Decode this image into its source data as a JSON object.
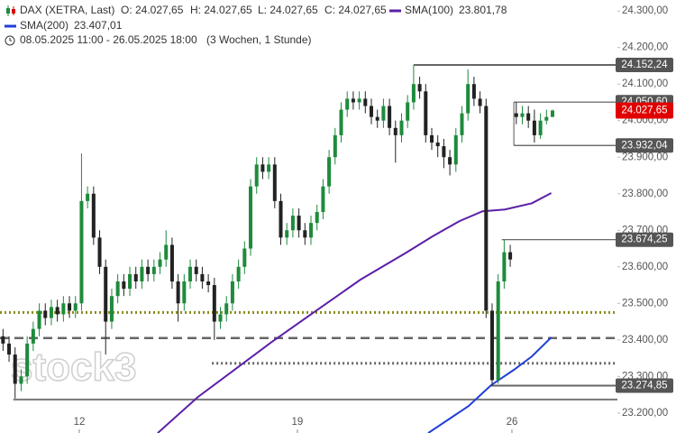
{
  "chart_data": {
    "type": "candlestick",
    "title": "DAX (XETRA, Last)",
    "ohlc_labels": [
      "O: 24.027,65",
      "H: 24.027,65",
      "L: 24.027,65",
      "C: 24.027,65"
    ],
    "period": "08.05.2025 11:00 - 26.05.2025 18:00",
    "period_note": "(3 Wochen, 1 Stunde)",
    "watermark": "stock3",
    "up_color": "#1e8b3c",
    "down_color": "#222222",
    "x": [
      0,
      1,
      2,
      3,
      4,
      5,
      6,
      7,
      8,
      9,
      10,
      11,
      12,
      13,
      14,
      15,
      16,
      17,
      18,
      19,
      20,
      21,
      22,
      23,
      24,
      25,
      26,
      27,
      28,
      29,
      30,
      31,
      32,
      33,
      34,
      35,
      36,
      37,
      38,
      39,
      40,
      41,
      42,
      43,
      44,
      45,
      46,
      47,
      48,
      49,
      50,
      51,
      52,
      53,
      54,
      55,
      56,
      57,
      58,
      59,
      60,
      61,
      62,
      63,
      64,
      65,
      66,
      67,
      68,
      69,
      70,
      71,
      72,
      73,
      74,
      75,
      76,
      77,
      78,
      79,
      80,
      81,
      82,
      83,
      84,
      85,
      86,
      87,
      88,
      89,
      90,
      91
    ],
    "open": [
      23410,
      23390,
      23360,
      23280,
      23300,
      23390,
      23430,
      23480,
      23460,
      23490,
      23470,
      23500,
      23480,
      23500,
      23780,
      23800,
      23680,
      23600,
      23450,
      23520,
      23560,
      23540,
      23580,
      23560,
      23600,
      23580,
      23600,
      23620,
      23660,
      23560,
      23500,
      23560,
      23600,
      23580,
      23560,
      23550,
      23450,
      23470,
      23500,
      23560,
      23600,
      23650,
      23820,
      23880,
      23860,
      23880,
      23780,
      23680,
      23700,
      23740,
      23700,
      23680,
      23720,
      23750,
      23820,
      23900,
      23960,
      24030,
      24060,
      24050,
      24060,
      24040,
      24010,
      24000,
      24040,
      23980,
      23960,
      24000,
      24050,
      24100,
      24080,
      23960,
      23940,
      23930,
      23900,
      23880,
      23960,
      24020,
      24100,
      24060,
      24040,
      23480,
      23290,
      23560,
      23640,
      24020,
      24010,
      24020,
      24000,
      23960,
      24000,
      24010
    ],
    "high": [
      23430,
      23410,
      23380,
      23320,
      23410,
      23450,
      23500,
      23500,
      23510,
      23510,
      23520,
      23520,
      23520,
      23910,
      23820,
      23820,
      23700,
      23620,
      23540,
      23580,
      23580,
      23600,
      23600,
      23620,
      23620,
      23620,
      23640,
      23700,
      23680,
      23580,
      23580,
      23620,
      23620,
      23600,
      23580,
      23570,
      23490,
      23520,
      23580,
      23620,
      23670,
      23840,
      23900,
      23900,
      23900,
      23900,
      23800,
      23720,
      23760,
      23760,
      23720,
      23740,
      23770,
      23840,
      23920,
      23980,
      24050,
      24080,
      24080,
      24080,
      24080,
      24060,
      24030,
      24060,
      24060,
      24000,
      24020,
      24070,
      24152.24,
      24120,
      24100,
      23980,
      23960,
      23950,
      23920,
      23980,
      24040,
      24140,
      24120,
      24080,
      24060,
      23500,
      23580,
      23674.25,
      23660,
      24050.6,
      24040,
      24040,
      24030,
      24020,
      24030,
      24030
    ],
    "low": [
      23370,
      23340,
      23240,
      23260,
      23280,
      23370,
      23410,
      23440,
      23440,
      23450,
      23450,
      23460,
      23460,
      23480,
      23760,
      23660,
      23580,
      23360,
      23430,
      23500,
      23520,
      23520,
      23540,
      23540,
      23560,
      23560,
      23580,
      23600,
      23540,
      23450,
      23480,
      23540,
      23560,
      23540,
      23530,
      23400,
      23430,
      23450,
      23480,
      23540,
      23580,
      23630,
      23800,
      23840,
      23840,
      23760,
      23660,
      23660,
      23680,
      23680,
      23660,
      23660,
      23700,
      23730,
      23800,
      23880,
      23940,
      24010,
      24030,
      24030,
      24020,
      23990,
      23980,
      23980,
      23960,
      23885,
      23940,
      23980,
      24030,
      24060,
      23940,
      23920,
      23900,
      23870,
      23850,
      23860,
      23940,
      24000,
      24040,
      24020,
      23460,
      23274.85,
      23280,
      23540,
      23600,
      23990,
      23990,
      23980,
      23940,
      23950,
      23990,
      24010
    ],
    "close": [
      23390,
      23360,
      23280,
      23300,
      23390,
      23430,
      23480,
      23460,
      23490,
      23470,
      23500,
      23480,
      23500,
      23780,
      23800,
      23680,
      23600,
      23450,
      23520,
      23560,
      23540,
      23580,
      23560,
      23600,
      23580,
      23600,
      23620,
      23660,
      23560,
      23500,
      23560,
      23600,
      23580,
      23560,
      23550,
      23450,
      23470,
      23500,
      23560,
      23600,
      23650,
      23820,
      23880,
      23860,
      23880,
      23780,
      23680,
      23700,
      23740,
      23700,
      23680,
      23720,
      23750,
      23820,
      23900,
      23960,
      24030,
      24060,
      24050,
      24060,
      24040,
      24010,
      24000,
      24040,
      23980,
      23960,
      24000,
      24050,
      24100,
      24080,
      23960,
      23940,
      23930,
      23900,
      23880,
      23960,
      24020,
      24100,
      24060,
      24040,
      23480,
      23290,
      23560,
      23640,
      23620,
      24010,
      24020,
      24000,
      23960,
      24000,
      24010,
      24027.65
    ],
    "overlays": [
      {
        "name": "SMA(100)",
        "value_label": "23.801,78",
        "color": "#5b1fa8",
        "x": [
          25.6,
          32.3,
          44.3,
          51.7,
          59.2,
          66.7,
          71.1,
          75.6,
          79.4,
          83.1,
          87.6,
          90.8
        ],
        "values": [
          23145,
          23244,
          23392,
          23478,
          23565,
          23638,
          23683,
          23725,
          23752,
          23757,
          23774,
          23801.78
        ]
      },
      {
        "name": "SMA(200)",
        "value_label": "23.407,01",
        "color": "#1f3fd6",
        "x": [
          70.4,
          77.1,
          80.8,
          84.6,
          87.6,
          90.8
        ],
        "values": [
          23145,
          23219,
          23276,
          23318,
          23355,
          23407.01
        ]
      }
    ],
    "levels": [
      {
        "value": 24152.24,
        "label": "24.152,24",
        "from": 68,
        "style": "solid",
        "color": "#666666"
      },
      {
        "value": 24050.6,
        "label": "24.050,60",
        "from": 84.6,
        "style": "thin",
        "color": "#555555"
      },
      {
        "value": 23932.04,
        "label": "23.932,04",
        "from": 84.6,
        "style": "thin",
        "color": "#555555"
      },
      {
        "value": 23674.25,
        "label": "23.674,25",
        "from": 82.6,
        "style": "thin",
        "color": "#555555"
      },
      {
        "value": 23274.85,
        "label": "23.274,85",
        "from": 80.8,
        "style": "solid",
        "color": "#666666"
      },
      {
        "value": 23237,
        "from": 1.7,
        "style": "solid",
        "color": "#777777"
      },
      {
        "value": 23475,
        "from": -0.5,
        "style": "dotted",
        "color": "#8a8a1a"
      },
      {
        "value": 23405,
        "from": -0.5,
        "style": "dashed",
        "color": "#666666"
      },
      {
        "value": 23336,
        "from": 34.6,
        "style": "dotted",
        "color": "#666666"
      }
    ],
    "price_label": {
      "value": 24027.65,
      "label": "24.027,65",
      "color": "#e00000"
    },
    "xlim": [
      -0.5,
      101.75
    ],
    "xticks": [
      {
        "value": 12.63,
        "label": "12"
      },
      {
        "value": 48.75,
        "label": "19"
      },
      {
        "value": 84.28,
        "label": "26"
      }
    ],
    "ylim": [
      23170,
      24330
    ],
    "yticks": [
      {
        "value": 23200,
        "label": "23.200,00"
      },
      {
        "value": 23300,
        "label": "23.300,00"
      },
      {
        "value": 23400,
        "label": "23.400,00"
      },
      {
        "value": 23500,
        "label": "23.500,00"
      },
      {
        "value": 23600,
        "label": "23.600,00"
      },
      {
        "value": 23700,
        "label": "23.700,00"
      },
      {
        "value": 23800,
        "label": "23.800,00"
      },
      {
        "value": 23900,
        "label": "23.900,00"
      },
      {
        "value": 24000,
        "label": "24.000,00"
      },
      {
        "value": 24100,
        "label": "24.100,00"
      },
      {
        "value": 24200,
        "label": "24.200,00"
      },
      {
        "value": 24300,
        "label": "24.300,00"
      }
    ]
  }
}
